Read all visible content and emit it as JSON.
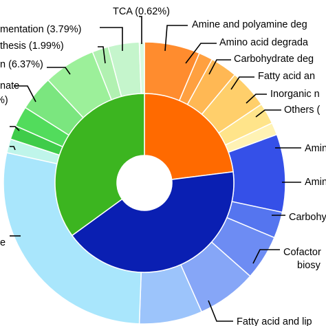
{
  "chart_data": {
    "type": "pie",
    "variant": "sunburst",
    "inner_ring": [
      {
        "name": "",
        "value": 23,
        "color": "#ff6a00"
      },
      {
        "name": "",
        "value": 42,
        "color": "#0a1fb2"
      },
      {
        "name": "",
        "value": 35,
        "color": "#3cb520"
      }
    ],
    "outer_ring": [
      {
        "name": "Amine and polyamine deg",
        "percent": null,
        "value": 6.8,
        "color": "#ff8c2e",
        "label": "Amine and polyamine deg"
      },
      {
        "name": "Amino acid degrada",
        "percent": null,
        "value": 1.7,
        "color": "#ffa040",
        "label": "Amino acid degrada"
      },
      {
        "name": "Carbohydrate deg",
        "percent": null,
        "value": 3.3,
        "color": "#ffb854",
        "label": "Carbohydrate deg"
      },
      {
        "name": "Fatty acid an",
        "percent": null,
        "value": 4.8,
        "color": "#ffcf6b",
        "label": "Fatty acid an"
      },
      {
        "name": "Inorganic n",
        "percent": null,
        "value": 2.6,
        "color": "#ffe48a",
        "label": "Inorganic n"
      },
      {
        "name": "Others (",
        "percent": null,
        "value": 1.5,
        "color": "#fff2b4",
        "label": "Others ("
      },
      {
        "name": "Amin",
        "percent": null,
        "value": 9.5,
        "color": "#3550e8",
        "label": "Amin"
      },
      {
        "name": "Amin",
        "percent": null,
        "value": 3.2,
        "color": "#5575ef",
        "label": "Amin"
      },
      {
        "name": "Carbohy",
        "percent": null,
        "value": 5.5,
        "color": "#6d8cf3",
        "label": "Carbohy"
      },
      {
        "name": "Cofactor biosy",
        "percent": null,
        "value": 7.3,
        "color": "#86a6f7",
        "label": "Cofactor biosy"
      },
      {
        "name": "Fatty acid and lip",
        "percent": null,
        "value": 7.7,
        "color": "#9cc4fb",
        "label": "Fatty acid and lip"
      },
      {
        "name": "e",
        "percent": null,
        "value": 29.7,
        "color": "#a9e6fc",
        "label": "e"
      },
      {
        "name": "",
        "percent": null,
        "value": 1.7,
        "color": "#bff5ea",
        "label": ""
      },
      {
        "name": "",
        "percent": null,
        "value": 1.7,
        "color": "#3fcc4a",
        "label": ""
      },
      {
        "name": "",
        "percent": null,
        "value": 2.5,
        "color": "#52dc5c",
        "label": ""
      },
      {
        "name": "nate",
        "percent": null,
        "value": 4.3,
        "color": "#7be67f",
        "label": "nate"
      },
      {
        "name": "n (6.37%)",
        "percent": 6.37,
        "value": 6.37,
        "color": "#9cf09a",
        "label": "n (6.37%)"
      },
      {
        "name": "thesis (1.99%)",
        "percent": 1.99,
        "value": 1.99,
        "color": "#b1f1b1",
        "label": "thesis (1.99%)"
      },
      {
        "name": "mentation (3.79%)",
        "percent": 3.79,
        "value": 3.79,
        "color": "#c5f5cc",
        "label": "mentation (3.79%)"
      },
      {
        "name": "TCA (0.62%)",
        "percent": 0.62,
        "value": 0.62,
        "color": "#d8fae0",
        "label": "TCA (0.62%)"
      }
    ],
    "extra_text": [
      "%)"
    ]
  }
}
